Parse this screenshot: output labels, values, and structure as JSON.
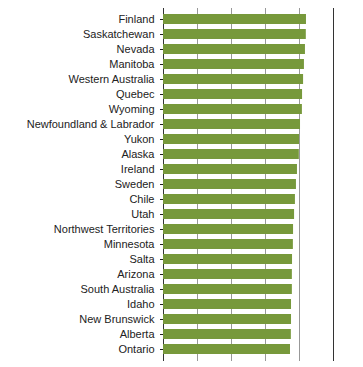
{
  "chart_data": {
    "type": "bar",
    "orientation": "horizontal",
    "categories": [
      "Finland",
      "Saskatchewan",
      "Nevada",
      "Manitoba",
      "Western Australia",
      "Quebec",
      "Wyoming",
      "Newfoundland & Labrador",
      "Yukon",
      "Alaska",
      "Ireland",
      "Sweden",
      "Chile",
      "Utah",
      "Northwest Territories",
      "Minnesota",
      "Salta",
      "Arizona",
      "South Australia",
      "Idaho",
      "New Brunswick",
      "Alberta",
      "Ontario"
    ],
    "values": [
      84.1,
      84.0,
      83.5,
      82.9,
      82.4,
      81.8,
      81.7,
      80.6,
      80.0,
      79.9,
      78.8,
      78.2,
      77.6,
      77.1,
      76.5,
      76.4,
      75.9,
      75.8,
      75.8,
      75.3,
      75.3,
      75.2,
      74.7
    ],
    "color": "#77993b",
    "xlim": [
      0,
      100
    ],
    "xticks": [
      0,
      20,
      40,
      60,
      80,
      100
    ],
    "grid": true,
    "tick_labels": "y"
  }
}
